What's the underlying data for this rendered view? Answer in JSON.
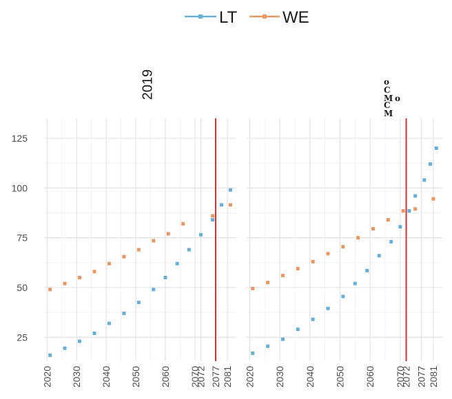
{
  "chart_data": {
    "type": "scatter",
    "legend": {
      "position": "top",
      "entries": [
        {
          "name": "LT",
          "color": "#6aaed6"
        },
        {
          "name": "WE",
          "color": "#e59866"
        }
      ]
    },
    "ylim": [
      13,
      135
    ],
    "yticks": [
      25,
      50,
      75,
      100,
      125
    ],
    "grid": true,
    "vline_color": "#cc3333",
    "panels": [
      {
        "strip": "2019",
        "strip_rotated": true,
        "xlim": [
          2019,
          2084
        ],
        "xticks": [
          2020,
          2030,
          2040,
          2050,
          2060,
          2070,
          2072,
          2077,
          2081
        ],
        "xtick_labels": [
          "2020",
          "2030",
          "2040",
          "2050",
          "2060",
          "2070",
          "2072",
          "2077",
          "2081"
        ],
        "vline": 2077,
        "series": [
          {
            "name": "LT",
            "color": "#6aaed6",
            "points": [
              [
                2021,
                16
              ],
              [
                2026,
                19.5
              ],
              [
                2031,
                23
              ],
              [
                2036,
                27
              ],
              [
                2041,
                32
              ],
              [
                2046,
                37
              ],
              [
                2051,
                42.5
              ],
              [
                2056,
                49
              ],
              [
                2060,
                55
              ],
              [
                2064,
                62
              ],
              [
                2068,
                69
              ],
              [
                2072,
                76.5
              ],
              [
                2076,
                84
              ],
              [
                2079,
                91.5
              ],
              [
                2082,
                99
              ]
            ]
          },
          {
            "name": "WE",
            "color": "#e59866",
            "points": [
              [
                2021,
                49
              ],
              [
                2026,
                52
              ],
              [
                2031,
                55
              ],
              [
                2036,
                58
              ],
              [
                2041,
                62
              ],
              [
                2046,
                65.5
              ],
              [
                2051,
                69
              ],
              [
                2056,
                73.5
              ],
              [
                2061,
                77
              ],
              [
                2066,
                82
              ],
              [
                2076,
                86
              ],
              [
                2082,
                91.5
              ]
            ]
          }
        ]
      },
      {
        "strip": "",
        "strip_rotated": true,
        "xlim": [
          2019,
          2084
        ],
        "xticks": [
          2020,
          2030,
          2040,
          2050,
          2060,
          2070,
          2072,
          2077,
          2081
        ],
        "xtick_labels": [
          "2020",
          "2030",
          "2040",
          "2050",
          "2060",
          "2070",
          "2072",
          "2077",
          "2081"
        ],
        "vline": 2072,
        "series": [
          {
            "name": "LT",
            "color": "#6aaed6",
            "points": [
              [
                2021,
                17
              ],
              [
                2026,
                20.5
              ],
              [
                2031,
                24
              ],
              [
                2036,
                29
              ],
              [
                2041,
                34
              ],
              [
                2046,
                39.5
              ],
              [
                2051,
                45.5
              ],
              [
                2055,
                52
              ],
              [
                2059,
                58.5
              ],
              [
                2063,
                66
              ],
              [
                2067,
                73
              ],
              [
                2070,
                80.5
              ],
              [
                2073,
                88.5
              ],
              [
                2075,
                96
              ],
              [
                2078,
                104
              ],
              [
                2080,
                112
              ],
              [
                2082,
                120
              ]
            ]
          },
          {
            "name": "WE",
            "color": "#e59866",
            "points": [
              [
                2021,
                49.5
              ],
              [
                2026,
                52.5
              ],
              [
                2031,
                56
              ],
              [
                2036,
                59.5
              ],
              [
                2041,
                63
              ],
              [
                2046,
                67
              ],
              [
                2051,
                70.5
              ],
              [
                2056,
                75
              ],
              [
                2061,
                79.5
              ],
              [
                2066,
                84
              ],
              [
                2071,
                88.5
              ],
              [
                2075,
                89.5
              ],
              [
                2081,
                94.5
              ]
            ]
          }
        ]
      }
    ]
  },
  "strip_seal_text": "o C M o C M"
}
